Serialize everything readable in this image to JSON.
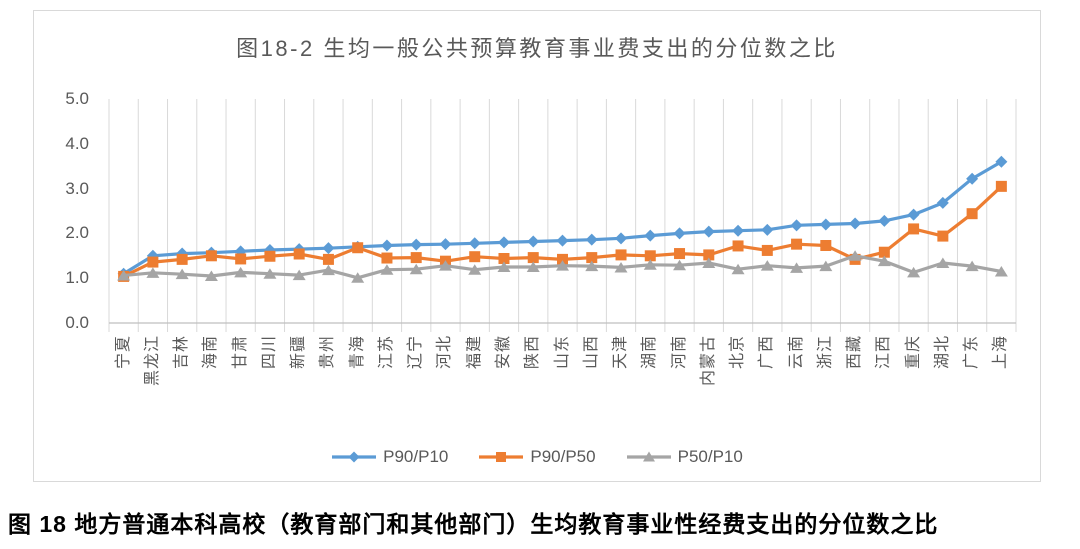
{
  "figure": {
    "title": "图18-2 生均一般公共预算教育事业费支出的分位数之比",
    "caption": "图 18 地方普通本科高校（教育部门和其他部门）生均教育事业性经费支出的分位数之比"
  },
  "chart_data": {
    "type": "line",
    "title": "图18-2 生均一般公共预算教育事业费支出的分位数之比",
    "categories": [
      "宁夏",
      "黑龙江",
      "吉林",
      "海南",
      "甘肃",
      "四川",
      "新疆",
      "贵州",
      "青海",
      "江苏",
      "辽宁",
      "河北",
      "福建",
      "安徽",
      "陕西",
      "山东",
      "山西",
      "天津",
      "湖南",
      "河南",
      "内蒙古",
      "北京",
      "广西",
      "云南",
      "浙江",
      "西藏",
      "江西",
      "重庆",
      "湖北",
      "广东",
      "上海"
    ],
    "series": [
      {
        "name": "P90/P10",
        "marker": "diamond",
        "color": "#5B9BD5",
        "values": [
          1.1,
          1.5,
          1.55,
          1.57,
          1.6,
          1.63,
          1.65,
          1.67,
          1.7,
          1.73,
          1.75,
          1.76,
          1.78,
          1.8,
          1.82,
          1.84,
          1.86,
          1.89,
          1.95,
          2.0,
          2.04,
          2.06,
          2.08,
          2.18,
          2.2,
          2.22,
          2.28,
          2.42,
          2.68,
          3.22,
          3.6
        ]
      },
      {
        "name": "P90/P50",
        "marker": "square",
        "color": "#ED7D31",
        "values": [
          1.04,
          1.36,
          1.42,
          1.5,
          1.43,
          1.49,
          1.54,
          1.42,
          1.68,
          1.45,
          1.46,
          1.38,
          1.48,
          1.44,
          1.46,
          1.42,
          1.46,
          1.52,
          1.5,
          1.55,
          1.52,
          1.72,
          1.62,
          1.76,
          1.73,
          1.42,
          1.58,
          2.1,
          1.94,
          2.44,
          3.05
        ]
      },
      {
        "name": "P50/P10",
        "marker": "triangle",
        "color": "#A5A5A5",
        "values": [
          1.06,
          1.12,
          1.09,
          1.05,
          1.13,
          1.1,
          1.07,
          1.18,
          1.01,
          1.19,
          1.2,
          1.28,
          1.19,
          1.25,
          1.25,
          1.28,
          1.27,
          1.24,
          1.3,
          1.29,
          1.34,
          1.2,
          1.28,
          1.23,
          1.27,
          1.5,
          1.38,
          1.13,
          1.34,
          1.27,
          1.15
        ]
      }
    ],
    "ylim": [
      0,
      5
    ],
    "yticks": [
      "0.0",
      "1.0",
      "2.0",
      "3.0",
      "4.0",
      "5.0"
    ],
    "xlabel": "",
    "ylabel": "",
    "grid": "vertical-only",
    "legend_position": "bottom"
  },
  "colors": {
    "axis_text": "#595959",
    "gridline": "#d9d9d9",
    "axis_line": "#bfbfbf",
    "frame_border": "#d9d9d9",
    "caption_text": "#000000"
  }
}
